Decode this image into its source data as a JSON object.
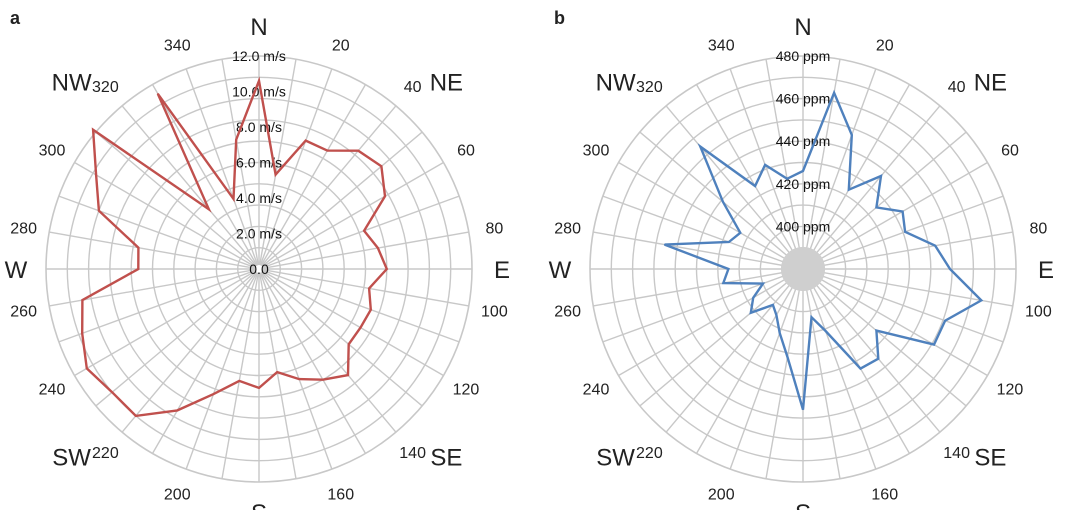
{
  "chart_data": [
    {
      "panel": "a",
      "type": "radar",
      "title": "",
      "radial_unit": "m/s",
      "rlim": [
        0,
        12
      ],
      "radial_ticks": [
        "0.0",
        "2.0 m/s",
        "4.0 m/s",
        "6.0 m/s",
        "8.0 m/s",
        "10.0 m/s",
        "12.0 m/s"
      ],
      "angle_tick_labels": [
        "20",
        "40",
        "60",
        "80",
        "100",
        "120",
        "140",
        "160",
        "200",
        "220",
        "240",
        "260",
        "280",
        "300",
        "320",
        "340"
      ],
      "compass_labels": [
        "N",
        "NE",
        "E",
        "SE",
        "S",
        "SW",
        "W",
        "NW"
      ],
      "line_color": "#c0504d",
      "directions": [
        0,
        10,
        20,
        30,
        40,
        50,
        60,
        70,
        80,
        90,
        100,
        110,
        120,
        130,
        140,
        150,
        160,
        170,
        180,
        190,
        200,
        210,
        220,
        230,
        240,
        250,
        260,
        270,
        280,
        290,
        300,
        310,
        320,
        330,
        340,
        350
      ],
      "values": [
        10.6,
        5.4,
        7.7,
        7.7,
        8.7,
        9.0,
        8.2,
        6.3,
        6.8,
        7.2,
        6.3,
        6.7,
        6.6,
        6.6,
        7.8,
        7.2,
        6.6,
        5.9,
        6.7,
        6.4,
        7.5,
        9.2,
        10.8,
        10.8,
        11.2,
        10.6,
        10.1,
        6.8,
        6.9,
        9.6,
        10.6,
        12.2,
        4.4,
        11.4,
        4.2,
        7.4
      ]
    },
    {
      "panel": "b",
      "type": "radar",
      "title": "",
      "radial_unit": "ppm",
      "rlim": [
        380,
        480
      ],
      "radial_ticks": [
        "400 ppm",
        "420 ppm",
        "440 ppm",
        "460 ppm",
        "480 ppm"
      ],
      "angle_tick_labels": [
        "20",
        "40",
        "60",
        "80",
        "100",
        "120",
        "140",
        "160",
        "200",
        "220",
        "240",
        "260",
        "280",
        "300",
        "320",
        "340"
      ],
      "compass_labels": [
        "N",
        "NE",
        "E",
        "SE",
        "S",
        "SW",
        "W",
        "NW"
      ],
      "line_color": "#4f81bd",
      "directions": [
        0,
        10,
        20,
        30,
        40,
        50,
        60,
        70,
        80,
        90,
        100,
        110,
        120,
        130,
        140,
        150,
        160,
        170,
        180,
        190,
        200,
        210,
        220,
        230,
        240,
        250,
        260,
        270,
        280,
        290,
        300,
        310,
        320,
        330,
        340,
        350
      ],
      "values": [
        426,
        464,
        447,
        423,
        437,
        425,
        434,
        431,
        443,
        449,
        465,
        451,
        451,
        425,
        435,
        434,
        411,
        403,
        446,
        422,
        412,
        405,
        402,
        412,
        407,
        400,
        418,
        415,
        446,
        417,
        414,
        429,
        455,
        425,
        432,
        423
      ]
    }
  ]
}
